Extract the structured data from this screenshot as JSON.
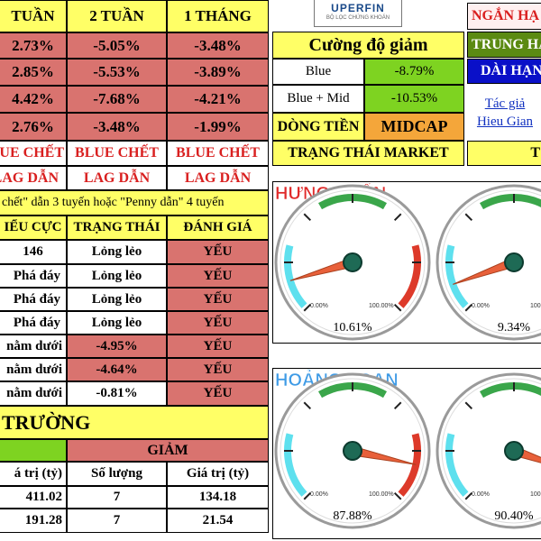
{
  "periods": {
    "h1": "TUẦN",
    "h2": "2 TUẦN",
    "h3": "1 THÁNG",
    "rows": [
      [
        "2.73%",
        "-5.05%",
        "-3.48%"
      ],
      [
        "2.85%",
        "-5.53%",
        "-3.89%"
      ],
      [
        "4.42%",
        "-7.68%",
        "-4.21%"
      ],
      [
        "2.76%",
        "-3.48%",
        "-1.99%"
      ]
    ]
  },
  "blue_label": "BLUE CHẾT",
  "lag_label": "LAG DẪN",
  "note": "chết\" dẫn 3 tuyến hoặc \"Penny dẫn\" 4 tuyến",
  "status_table": {
    "h1": "IỂU CỰC",
    "h2": "TRẠNG THÁI",
    "h3": "ĐÁNH GIÁ",
    "rows": [
      {
        "a": "146",
        "b": "Lỏng lẻo",
        "c": "YẾU"
      },
      {
        "a": "Phá đáy",
        "b": "Lỏng lẻo",
        "c": "YẾU"
      },
      {
        "a": "Phá đáy",
        "b": "Lỏng lẻo",
        "c": "YẾU"
      },
      {
        "a": "Phá đáy",
        "b": "Lỏng lẻo",
        "c": "YẾU"
      },
      {
        "a": "nằm dưới",
        "b": "-4.95%",
        "c": "YẾU"
      },
      {
        "a": "nằm dưới",
        "b": "-4.64%",
        "c": "YẾU"
      },
      {
        "a": "nằm dưới",
        "b": "-0.81%",
        "c": "YẾU"
      }
    ]
  },
  "market": {
    "title": "TRƯỜNG",
    "giam": "GIẢM",
    "h1": "á trị (tỷ)",
    "h2": "Số lượng",
    "h3": "Giá trị (tỷ)",
    "rows": [
      [
        "411.02",
        "7",
        "134.18"
      ],
      [
        "191.28",
        "7",
        "21.54"
      ]
    ]
  },
  "logo": {
    "name": "UPERFIN",
    "sub": "BỘ LỌC CHỨNG KHOÁN"
  },
  "cuong_do": {
    "title": "Cường độ giảm",
    "rows": [
      {
        "label": "Blue",
        "value": "-8.79%"
      },
      {
        "label": "Blue + Mid",
        "value": "-10.53%"
      }
    ]
  },
  "dong_tien": {
    "label": "DÒNG TIỀN",
    "value": "MIDCAP"
  },
  "trang_thai": {
    "label": "TRẠNG THÁI MARKET",
    "value": "T"
  },
  "right_col": {
    "ngan_han": "NGẮN HẠ",
    "trung_han": "TRUNG HẠ",
    "dai_han": "DÀI HẠN",
    "tac_gia": "Tác giả",
    "author": "Hieu Gian"
  },
  "gauges": {
    "panel1_title": "HƯNG PHẤN",
    "panel2_title": "HOẢNG LOẠN",
    "min_label": "0.00%",
    "max_label": "100.00%",
    "g1": {
      "value": 10.61,
      "label": "10.61%"
    },
    "g2": {
      "value": 9.34,
      "label": "9.34%"
    },
    "g3": {
      "value": 87.88,
      "label": "87.88%"
    },
    "g4": {
      "value": 90.4,
      "label": "90.40%"
    }
  },
  "colors": {
    "yellow": "#ffff66",
    "red": "#d9736f",
    "green": "#7ed321",
    "blue": "#0a10c8",
    "orange": "#f4a63a"
  }
}
